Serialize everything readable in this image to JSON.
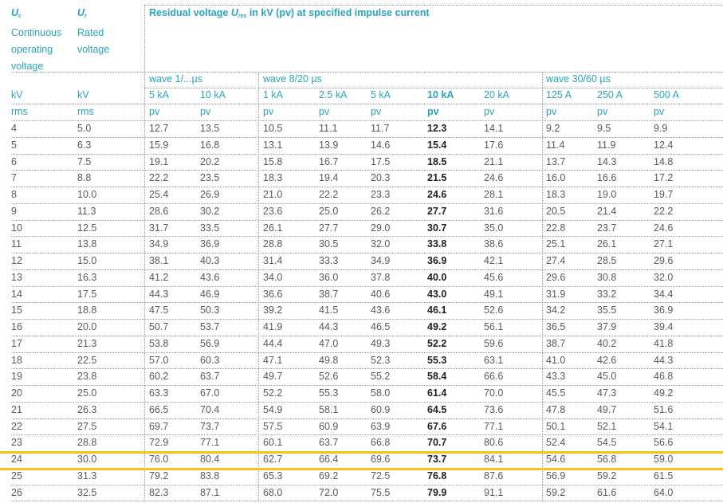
{
  "header": {
    "uc_symbol": "U",
    "uc_sub": "c",
    "uc_line1": "Continuous",
    "uc_line2": "operating",
    "uc_line3": "voltage",
    "ur_symbol": "U",
    "ur_sub": "r",
    "ur_line1": "Rated",
    "ur_line2": "voltage",
    "residual_prefix": "Residual voltage ",
    "residual_symbol": "U",
    "residual_sub": "res",
    "residual_suffix": " in kV (pv) at specified impulse current"
  },
  "groups": {
    "wave1": "wave 1/...µs",
    "wave8": "wave 8/20 µs",
    "wave30": "wave 30/60 µs"
  },
  "columns": [
    {
      "current": "kV",
      "unit": "rms"
    },
    {
      "current": "kV",
      "unit": "rms"
    },
    {
      "current": "5 kA",
      "unit": "pv"
    },
    {
      "current": "10 kA",
      "unit": "pv"
    },
    {
      "current": "1 kA",
      "unit": "pv"
    },
    {
      "current": "2.5 kA",
      "unit": "pv"
    },
    {
      "current": "5 kA",
      "unit": "pv"
    },
    {
      "current": "10 kA",
      "unit": "pv"
    },
    {
      "current": "20 kA",
      "unit": "pv"
    },
    {
      "current": "125 A",
      "unit": "pv"
    },
    {
      "current": "250 A",
      "unit": "pv"
    },
    {
      "current": "500 A",
      "unit": "pv"
    }
  ],
  "highlight_color": "#f4c41b",
  "accent_color": "#2aa4be",
  "rows": [
    [
      "4",
      "5.0",
      "12.7",
      "13.5",
      "10.5",
      "11.1",
      "11.7",
      "12.3",
      "14.1",
      "9.2",
      "9.5",
      "9.9"
    ],
    [
      "5",
      "6.3",
      "15.9",
      "16.8",
      "13.1",
      "13.9",
      "14.6",
      "15.4",
      "17.6",
      "11.4",
      "11.9",
      "12.4"
    ],
    [
      "6",
      "7.5",
      "19.1",
      "20.2",
      "15.8",
      "16.7",
      "17.5",
      "18.5",
      "21.1",
      "13.7",
      "14.3",
      "14.8"
    ],
    [
      "7",
      "8.8",
      "22.2",
      "23.5",
      "18.3",
      "19.4",
      "20.3",
      "21.5",
      "24.6",
      "16.0",
      "16.6",
      "17.2"
    ],
    [
      "8",
      "10.0",
      "25.4",
      "26.9",
      "21.0",
      "22.2",
      "23.3",
      "24.6",
      "28.1",
      "18.3",
      "19.0",
      "19.7"
    ],
    [
      "9",
      "11.3",
      "28.6",
      "30.2",
      "23.6",
      "25.0",
      "26.2",
      "27.7",
      "31.6",
      "20.5",
      "21.4",
      "22.2"
    ],
    [
      "10",
      "12.5",
      "31.7",
      "33.5",
      "26.1",
      "27.7",
      "29.0",
      "30.7",
      "35.0",
      "22.8",
      "23.7",
      "24.6"
    ],
    [
      "11",
      "13.8",
      "34.9",
      "36.9",
      "28.8",
      "30.5",
      "32.0",
      "33.8",
      "38.6",
      "25.1",
      "26.1",
      "27.1"
    ],
    [
      "12",
      "15.0",
      "38.1",
      "40.3",
      "31.4",
      "33.3",
      "34.9",
      "36.9",
      "42.1",
      "27.4",
      "28.5",
      "29.6"
    ],
    [
      "13",
      "16.3",
      "41.2",
      "43.6",
      "34.0",
      "36.0",
      "37.8",
      "40.0",
      "45.6",
      "29.6",
      "30.8",
      "32.0"
    ],
    [
      "14",
      "17.5",
      "44.3",
      "46.9",
      "36.6",
      "38.7",
      "40.6",
      "43.0",
      "49.1",
      "31.9",
      "33.2",
      "34.4"
    ],
    [
      "15",
      "18.8",
      "47.5",
      "50.3",
      "39.2",
      "41.5",
      "43.6",
      "46.1",
      "52.6",
      "34.2",
      "35.5",
      "36.9"
    ],
    [
      "16",
      "20.0",
      "50.7",
      "53.7",
      "41.9",
      "44.3",
      "46.5",
      "49.2",
      "56.1",
      "36.5",
      "37.9",
      "39.4"
    ],
    [
      "17",
      "21.3",
      "53.8",
      "56.9",
      "44.4",
      "47.0",
      "49.3",
      "52.2",
      "59.6",
      "38.7",
      "40.2",
      "41.8"
    ],
    [
      "18",
      "22.5",
      "57.0",
      "60.3",
      "47.1",
      "49.8",
      "52.3",
      "55.3",
      "63.1",
      "41.0",
      "42.6",
      "44.3"
    ],
    [
      "19",
      "23.8",
      "60.2",
      "63.7",
      "49.7",
      "52.6",
      "55.2",
      "58.4",
      "66.6",
      "43.3",
      "45.0",
      "46.8"
    ],
    [
      "20",
      "25.0",
      "63.3",
      "67.0",
      "52.2",
      "55.3",
      "58.0",
      "61.4",
      "70.0",
      "45.5",
      "47.3",
      "49.2"
    ],
    [
      "21",
      "26.3",
      "66.5",
      "70.4",
      "54.9",
      "58.1",
      "60.9",
      "64.5",
      "73.6",
      "47.8",
      "49.7",
      "51.6"
    ],
    [
      "22",
      "27.5",
      "69.7",
      "73.7",
      "57.5",
      "60.9",
      "63.9",
      "67.6",
      "77.1",
      "50.1",
      "52.1",
      "54.1"
    ],
    [
      "23",
      "28.8",
      "72.9",
      "77.1",
      "60.1",
      "63.7",
      "66.8",
      "70.7",
      "80.6",
      "52.4",
      "54.5",
      "56.6"
    ],
    [
      "24",
      "30.0",
      "76.0",
      "80.4",
      "62.7",
      "66.4",
      "69.6",
      "73.7",
      "84.1",
      "54.6",
      "56.8",
      "59.0"
    ],
    [
      "25",
      "31.3",
      "79.2",
      "83.8",
      "65.3",
      "69.2",
      "72.5",
      "76.8",
      "87.6",
      "56.9",
      "59.2",
      "61.5"
    ],
    [
      "26",
      "32.5",
      "82.3",
      "87.1",
      "68.0",
      "72.0",
      "75.5",
      "79.9",
      "91.1",
      "59.2",
      "61.6",
      "64.0"
    ]
  ]
}
